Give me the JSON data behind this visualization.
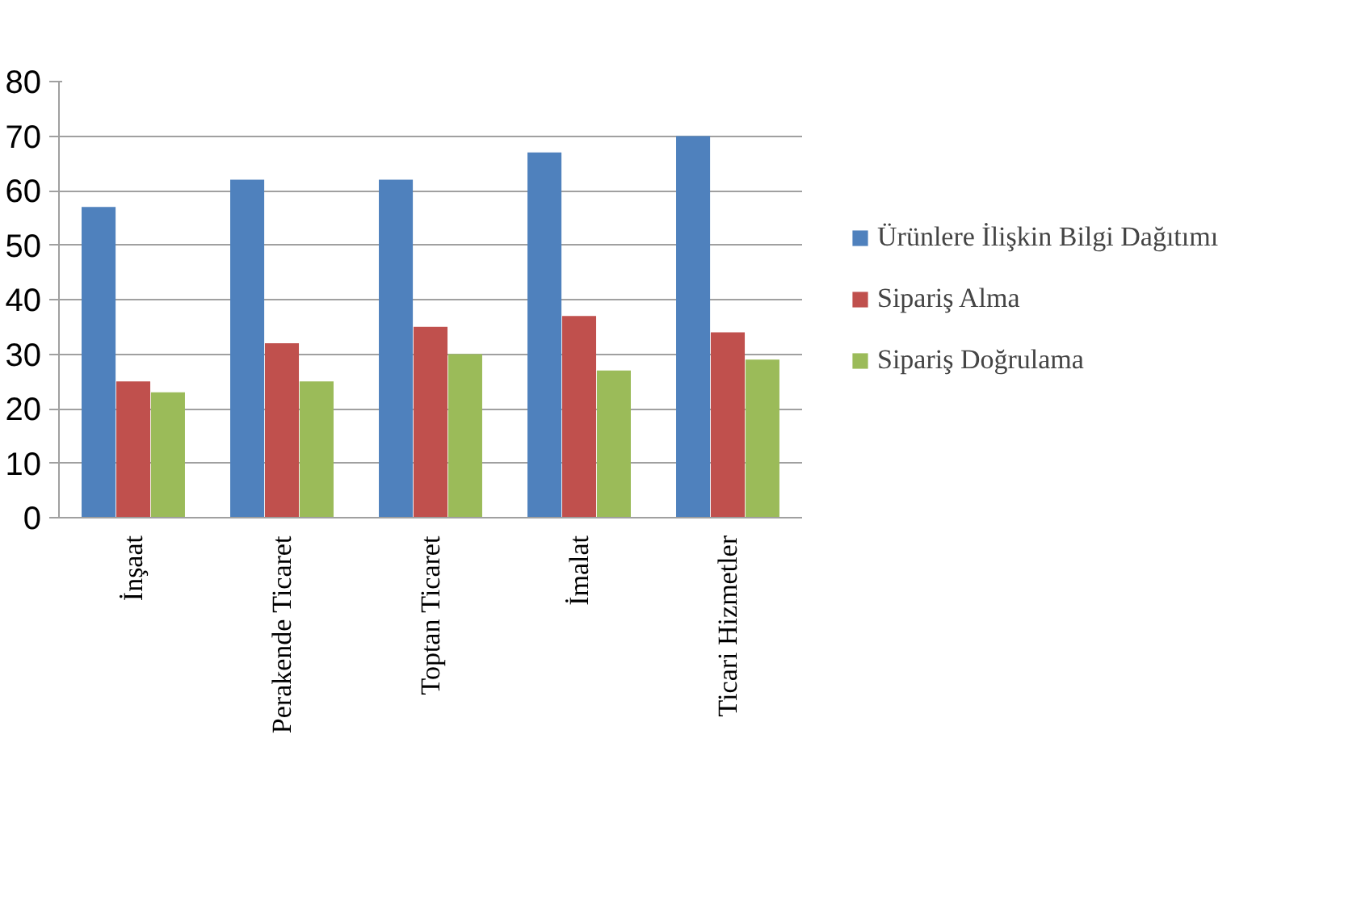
{
  "chart_data": {
    "type": "bar",
    "categories": [
      "İnşaat",
      "Perakende Ticaret",
      "Toptan Ticaret",
      "İmalat",
      "Ticari Hizmetler"
    ],
    "series": [
      {
        "name": "Ürünlere İlişkin Bilgi Dağıtımı",
        "color": "#4f81bd",
        "values": [
          57,
          62,
          62,
          67,
          70
        ]
      },
      {
        "name": "Sipariş Alma",
        "color": "#c0504d",
        "values": [
          25,
          32,
          35,
          37,
          34
        ]
      },
      {
        "name": "Sipariş Doğrulama",
        "color": "#9bbb59",
        "values": [
          23,
          25,
          30,
          27,
          29
        ]
      }
    ],
    "ylim": [
      0,
      80
    ],
    "yticks": [
      0,
      10,
      20,
      30,
      40,
      50,
      60,
      70,
      80
    ],
    "grid": "y",
    "legend": "right"
  }
}
